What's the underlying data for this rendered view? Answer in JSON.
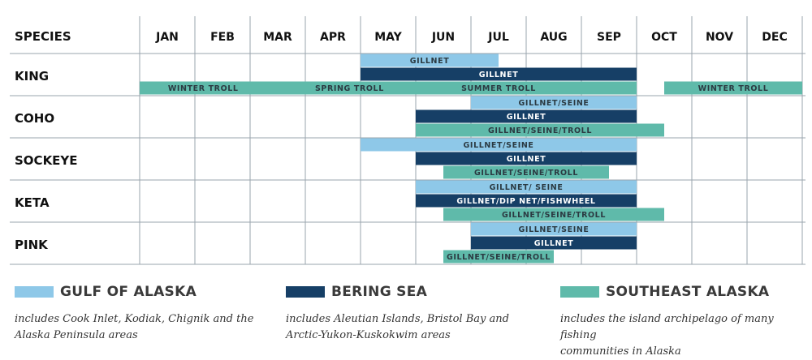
{
  "chart_data": {
    "type": "gantt",
    "header_label": "SPECIES",
    "months": [
      "JAN",
      "FEB",
      "MAR",
      "APR",
      "MAY",
      "JUN",
      "JUL",
      "AUG",
      "SEP",
      "OCT",
      "NOV",
      "DEC"
    ],
    "species": [
      {
        "name": "KING",
        "bars": [
          {
            "region": "gulf",
            "label": "GILLNET",
            "start": 4.0,
            "end": 6.5,
            "lane": 0
          },
          {
            "region": "bering",
            "label": "GILLNET",
            "start": 4.0,
            "end": 9.0,
            "lane": 1
          },
          {
            "region": "southeast",
            "label": "WINTER TROLL",
            "start": 0.0,
            "end": 9.0,
            "lane": 2,
            "segment_labels": [
              {
                "label": "WINTER TROLL",
                "at": 1.15
              },
              {
                "label": "SPRING TROLL",
                "at": 3.8
              },
              {
                "label": "SUMMER TROLL",
                "at": 6.5
              }
            ]
          },
          {
            "region": "southeast",
            "label": "WINTER TROLL",
            "start": 9.5,
            "end": 12.0,
            "lane": 2
          }
        ]
      },
      {
        "name": "COHO",
        "bars": [
          {
            "region": "gulf",
            "label": "GILLNET/SEINE",
            "start": 6.0,
            "end": 9.0,
            "lane": 0
          },
          {
            "region": "bering",
            "label": "GILLNET",
            "start": 5.0,
            "end": 9.0,
            "lane": 1
          },
          {
            "region": "southeast",
            "label": "GILLNET/SEINE/TROLL",
            "start": 5.0,
            "end": 9.5,
            "lane": 2
          }
        ]
      },
      {
        "name": "SOCKEYE",
        "bars": [
          {
            "region": "gulf",
            "label": "GILLNET/SEINE",
            "start": 4.0,
            "end": 9.0,
            "lane": 0
          },
          {
            "region": "bering",
            "label": "GILLNET",
            "start": 5.0,
            "end": 9.0,
            "lane": 1
          },
          {
            "region": "southeast",
            "label": "GILLNET/SEINE/TROLL",
            "start": 5.5,
            "end": 8.5,
            "lane": 2
          }
        ]
      },
      {
        "name": "KETA",
        "bars": [
          {
            "region": "gulf",
            "label": "GILLNET/ SEINE",
            "start": 5.0,
            "end": 9.0,
            "lane": 0
          },
          {
            "region": "bering",
            "label": "GILLNET/DIP NET/FISHWHEEL",
            "start": 5.0,
            "end": 9.0,
            "lane": 1
          },
          {
            "region": "southeast",
            "label": "GILLNET/SEINE/TROLL",
            "start": 5.5,
            "end": 9.5,
            "lane": 2
          }
        ]
      },
      {
        "name": "PINK",
        "bars": [
          {
            "region": "gulf",
            "label": "GILLNET/SEINE",
            "start": 6.0,
            "end": 9.0,
            "lane": 0
          },
          {
            "region": "bering",
            "label": "GILLNET",
            "start": 6.0,
            "end": 9.0,
            "lane": 1
          },
          {
            "region": "southeast",
            "label": "GILLNET/SEINE/TROLL",
            "start": 5.5,
            "end": 7.5,
            "lane": 2
          }
        ]
      }
    ]
  },
  "colors": {
    "gulf": "#8ec8e8",
    "bering": "#163f66",
    "southeast": "#5fbaaa",
    "grid": "#9aa4ad",
    "text": "#111111"
  },
  "legend": [
    {
      "key": "gulf",
      "title": "GULF OF ALASKA",
      "desc_lines": [
        "includes Cook Inlet, Kodiak, Chignik and the",
        "Alaska Peninsula areas"
      ]
    },
    {
      "key": "bering",
      "title": "BERING SEA",
      "desc_lines": [
        "includes Aleutian Islands, Bristol Bay and",
        "Arctic-Yukon-Kuskokwim areas"
      ]
    },
    {
      "key": "southeast",
      "title": "SOUTHEAST ALASKA",
      "desc_lines": [
        "includes the island archipelago of many fishing",
        "communities in Alaska"
      ]
    }
  ]
}
